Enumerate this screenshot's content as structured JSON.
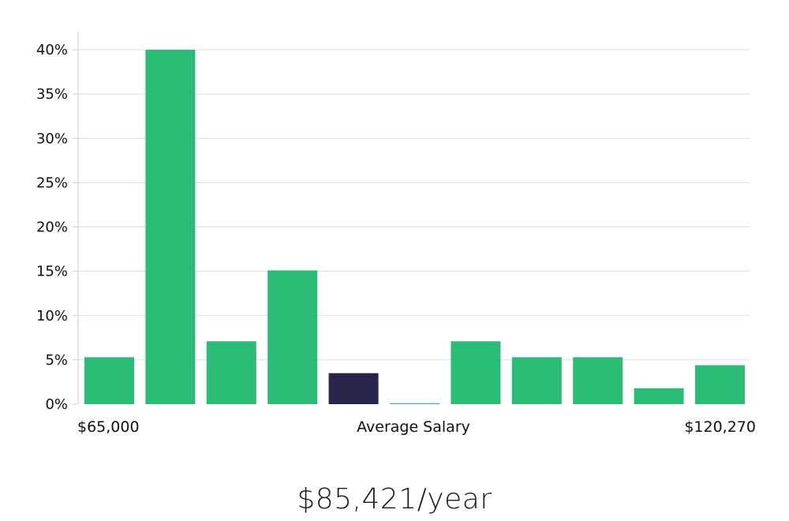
{
  "chart_data": {
    "type": "bar",
    "title": "",
    "xlabel": "Average Salary",
    "ylabel": "",
    "x_min_label": "$65,000",
    "x_max_label": "$120,270",
    "ylim": [
      0,
      40
    ],
    "yticks": [
      0,
      5,
      10,
      15,
      20,
      25,
      30,
      35,
      40
    ],
    "ytick_labels": [
      "0%",
      "5%",
      "10%",
      "15%",
      "20%",
      "25%",
      "30%",
      "35%",
      "40%"
    ],
    "grid": true,
    "values": [
      5.3,
      40.0,
      7.1,
      15.1,
      3.5,
      0.1,
      7.1,
      5.3,
      5.3,
      1.8,
      4.4
    ],
    "highlight_index": 4,
    "colors": {
      "bar": "#2bbd75",
      "highlight": "#28244a",
      "grid": "#dddddd",
      "axis": "#cccccc"
    }
  },
  "salary_summary": "$85,421/year"
}
